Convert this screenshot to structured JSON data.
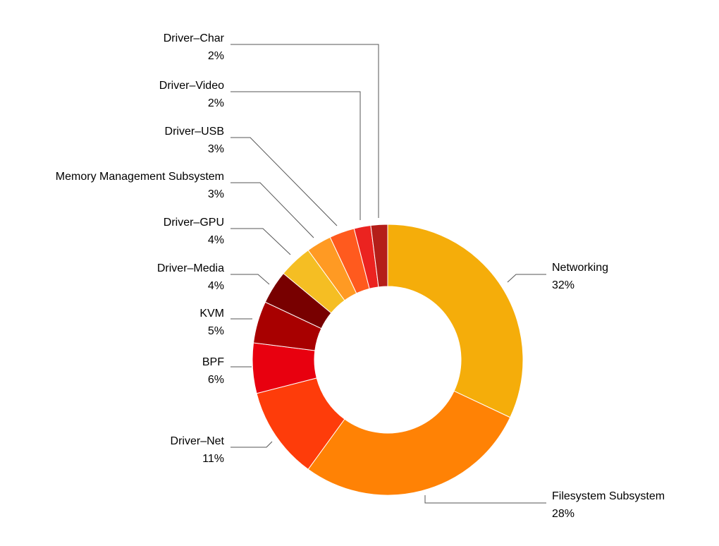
{
  "chart_data": {
    "type": "pie",
    "donut": true,
    "legend": "none",
    "title": "",
    "slices": [
      {
        "name": "Networking",
        "pct_label": "32%",
        "value": 32,
        "color": "#F5AD0A"
      },
      {
        "name": "Filesystem Subsystem",
        "pct_label": "28%",
        "value": 28,
        "color": "#FF8205"
      },
      {
        "name": "Driver–Net",
        "pct_label": "11%",
        "value": 11,
        "color": "#FE3C0A"
      },
      {
        "name": "BPF",
        "pct_label": "6%",
        "value": 6,
        "color": "#E8000F"
      },
      {
        "name": "KVM",
        "pct_label": "5%",
        "value": 5,
        "color": "#A80000"
      },
      {
        "name": "Driver–Media",
        "pct_label": "4%",
        "value": 4,
        "color": "#780000"
      },
      {
        "name": "Driver–GPU",
        "pct_label": "4%",
        "value": 4,
        "color": "#F5BE23"
      },
      {
        "name": "Memory Management Subsystem",
        "pct_label": "3%",
        "value": 3,
        "color": "#FF9A23"
      },
      {
        "name": "Driver–USB",
        "pct_label": "3%",
        "value": 3,
        "color": "#FF5A1E"
      },
      {
        "name": "Driver–Video",
        "pct_label": "2%",
        "value": 2,
        "color": "#EB2320"
      },
      {
        "name": "Driver–Char",
        "pct_label": "2%",
        "value": 2,
        "color": "#B41E19"
      }
    ]
  }
}
